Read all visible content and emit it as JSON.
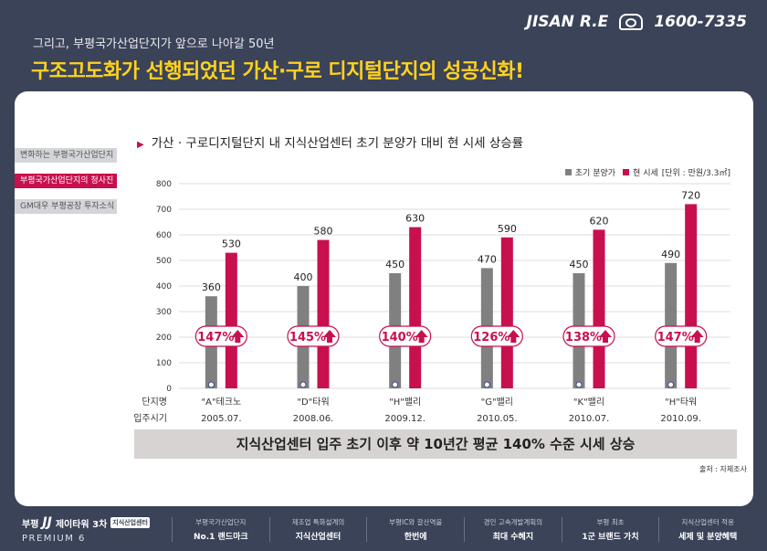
{
  "header": {
    "subtitle": "그리고, 부평국가산업단지가 앞으로 나아갈 50년",
    "title": "구조고도화가 선행되었던 가산·구로 디지털단지의 성공신화!",
    "brand": "JISAN R.E",
    "phone": "1600-7335"
  },
  "sidebar": {
    "items": [
      {
        "label": "변화하는 부평국가산업단지"
      },
      {
        "label": "부평국가산업단지의 청사진"
      },
      {
        "label": "GM대우 부평공장 투자소식"
      }
    ]
  },
  "chart_data": {
    "type": "bar",
    "title": "가산 · 구로디지털단지 내 지식산업센터 초기 분양가 대비 현 시세 상승률",
    "unit_label": "[단위 : 만원/3.3㎡]",
    "row_labels": [
      "단지명",
      "입주시기"
    ],
    "categories": [
      "\"A\"테크노",
      "\"D\"타워",
      "\"H\"밸리",
      "\"G\"밸리",
      "\"K\"밸리",
      "\"H\"타워"
    ],
    "dates": [
      "2005.07.",
      "2008.06.",
      "2009.12.",
      "2010.05.",
      "2010.07.",
      "2010.09."
    ],
    "series": [
      {
        "name": "초기 분양가",
        "values": [
          360,
          400,
          450,
          470,
          450,
          490
        ]
      },
      {
        "name": "현 시세",
        "values": [
          530,
          580,
          630,
          590,
          620,
          720
        ]
      }
    ],
    "growth_labels": [
      "147%",
      "145%",
      "140%",
      "126%",
      "138%",
      "147%"
    ],
    "ylim": [
      0,
      800
    ],
    "yticks": [
      "0",
      "100",
      "200",
      "300",
      "400",
      "500",
      "600",
      "700",
      "800"
    ],
    "colors": {
      "initial": "#808080",
      "current": "#c8104e",
      "badge_border": "#c8104e"
    }
  },
  "summary": "지식산업센터 입주 초기 이후 약 10년간 평균 140% 수준 시세 상승",
  "source": "출처 : 자체조사",
  "footer": {
    "logo": {
      "area": "부평",
      "name": "제이타워 3차",
      "tag": "지식산업센터",
      "sub": "PREMIUM 6"
    },
    "items": [
      {
        "small": "부평국가산업단지",
        "big": "No.1 랜드마크"
      },
      {
        "small": "제조업 특화설계의",
        "big": "지식산업센터"
      },
      {
        "small": "부평IC와 갈산역을",
        "big": "한번에"
      },
      {
        "small": "경인 고속개발계획의",
        "big": "최대 수혜지"
      },
      {
        "small": "부평 최초",
        "big": "1군 브랜드 가치"
      },
      {
        "small": "지식산업센터 적용",
        "big": "세제 및 분양혜택"
      }
    ]
  }
}
